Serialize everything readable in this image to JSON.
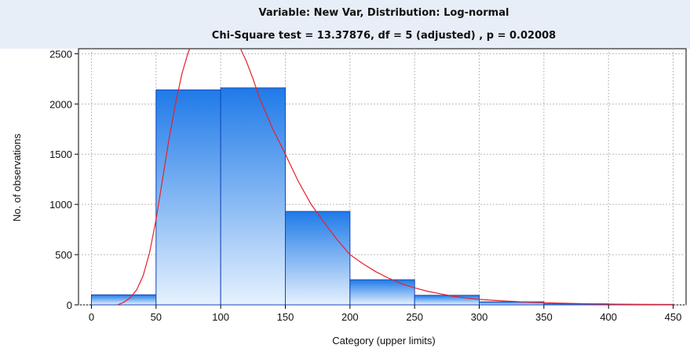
{
  "chart_data": {
    "type": "bar",
    "title": "Variable: New Var, Distribution: Log-normal",
    "subtitle": "Chi-Square test = 13.37876, df = 5 (adjusted) , p = 0.02008",
    "xlabel": "Category (upper limits)",
    "ylabel": "No. of observations",
    "xlim": [
      -10,
      460
    ],
    "ylim": [
      0,
      2550
    ],
    "x_ticks": [
      0,
      50,
      100,
      150,
      200,
      250,
      300,
      350,
      400,
      450
    ],
    "y_ticks": [
      0,
      500,
      1000,
      1500,
      2000,
      2500
    ],
    "grid": true,
    "bins": [
      {
        "lower": 0,
        "upper": 50,
        "count": 100
      },
      {
        "lower": 50,
        "upper": 100,
        "count": 2140
      },
      {
        "lower": 100,
        "upper": 150,
        "count": 2160
      },
      {
        "lower": 150,
        "upper": 200,
        "count": 930
      },
      {
        "lower": 200,
        "upper": 250,
        "count": 250
      },
      {
        "lower": 250,
        "upper": 300,
        "count": 95
      },
      {
        "lower": 300,
        "upper": 350,
        "count": 30
      },
      {
        "lower": 350,
        "upper": 400,
        "count": 10
      },
      {
        "lower": 400,
        "upper": 450,
        "count": 5
      }
    ],
    "fit_curve": {
      "x": [
        20,
        25,
        30,
        35,
        40,
        45,
        50,
        55,
        60,
        65,
        70,
        75,
        80,
        85,
        90,
        95,
        100,
        105,
        110,
        115,
        120,
        125,
        130,
        140,
        150,
        160,
        170,
        180,
        190,
        200,
        210,
        220,
        230,
        240,
        250,
        260,
        270,
        280,
        290,
        300,
        320,
        340,
        360,
        380,
        400,
        420,
        440,
        450
      ],
      "y": [
        0,
        25,
        70,
        150,
        290,
        520,
        850,
        1250,
        1650,
        2000,
        2300,
        2520,
        2650,
        2730,
        2780,
        2790,
        2780,
        2740,
        2670,
        2560,
        2420,
        2250,
        2060,
        1760,
        1500,
        1230,
        1000,
        820,
        650,
        500,
        410,
        330,
        265,
        210,
        170,
        135,
        110,
        85,
        68,
        55,
        38,
        26,
        18,
        12,
        8,
        5,
        3,
        2
      ],
      "color": "#e8202a"
    },
    "colors": {
      "bar_top": "#1f7ae8",
      "bar_bottom": "#e6f2fe",
      "bar_edge": "#1546b8",
      "title_band": "#e8eef7"
    }
  }
}
